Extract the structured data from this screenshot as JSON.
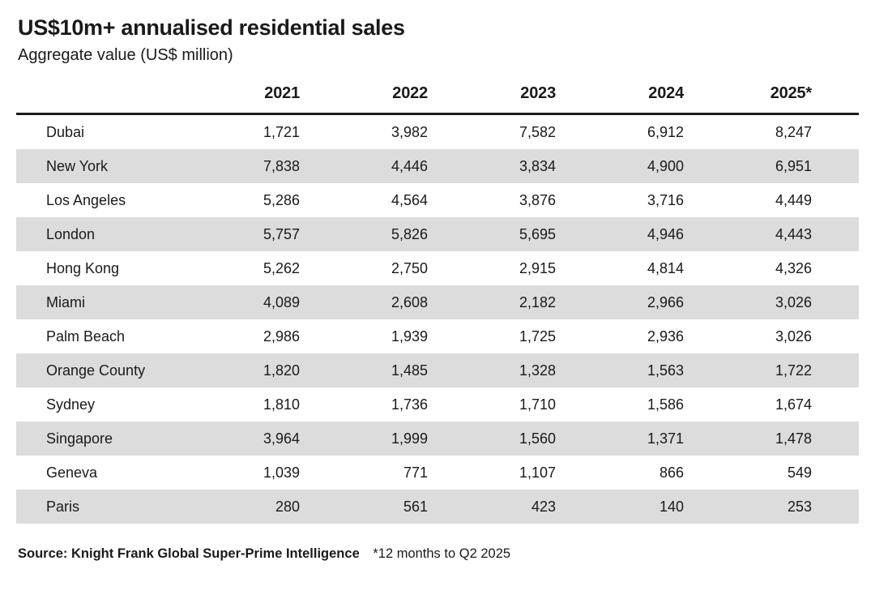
{
  "title": "US$10m+ annualised residential sales",
  "subtitle": "Aggregate value (US$ million)",
  "source_label": "Source: Knight Frank Global Super-Prime Intelligence",
  "footnote": "*12 months to Q2 2025",
  "colors": {
    "text": "#1a1a1a",
    "row_stripe": "#dcdcdc",
    "header_rule": "#1a1a1a",
    "background": "#ffffff"
  },
  "chart_data": {
    "type": "table",
    "title": "US$10m+ annualised residential sales",
    "subtitle": "Aggregate value (US$ million)",
    "columns": [
      "",
      "2021",
      "2022",
      "2023",
      "2024",
      "2025*"
    ],
    "rows": [
      {
        "city": "Dubai",
        "values": [
          "1,721",
          "3,982",
          "7,582",
          "6,912",
          "8,247"
        ]
      },
      {
        "city": "New York",
        "values": [
          "7,838",
          "4,446",
          "3,834",
          "4,900",
          "6,951"
        ]
      },
      {
        "city": "Los Angeles",
        "values": [
          "5,286",
          "4,564",
          "3,876",
          "3,716",
          "4,449"
        ]
      },
      {
        "city": "London",
        "values": [
          "5,757",
          "5,826",
          "5,695",
          "4,946",
          "4,443"
        ]
      },
      {
        "city": "Hong Kong",
        "values": [
          "5,262",
          "2,750",
          "2,915",
          "4,814",
          "4,326"
        ]
      },
      {
        "city": "Miami",
        "values": [
          "4,089",
          "2,608",
          "2,182",
          "2,966",
          "3,026"
        ]
      },
      {
        "city": "Palm Beach",
        "values": [
          "2,986",
          "1,939",
          "1,725",
          "2,936",
          "3,026"
        ]
      },
      {
        "city": "Orange County",
        "values": [
          "1,820",
          "1,485",
          "1,328",
          "1,563",
          "1,722"
        ]
      },
      {
        "city": "Sydney",
        "values": [
          "1,810",
          "1,736",
          "1,710",
          "1,586",
          "1,674"
        ]
      },
      {
        "city": "Singapore",
        "values": [
          "3,964",
          "1,999",
          "1,560",
          "1,371",
          "1,478"
        ]
      },
      {
        "city": "Geneva",
        "values": [
          "1,039",
          "771",
          "1,107",
          "866",
          "549"
        ]
      },
      {
        "city": "Paris",
        "values": [
          "280",
          "561",
          "423",
          "140",
          "253"
        ]
      }
    ],
    "source": "Source: Knight Frank Global Super-Prime Intelligence",
    "footnote": "*12 months to Q2 2025"
  }
}
